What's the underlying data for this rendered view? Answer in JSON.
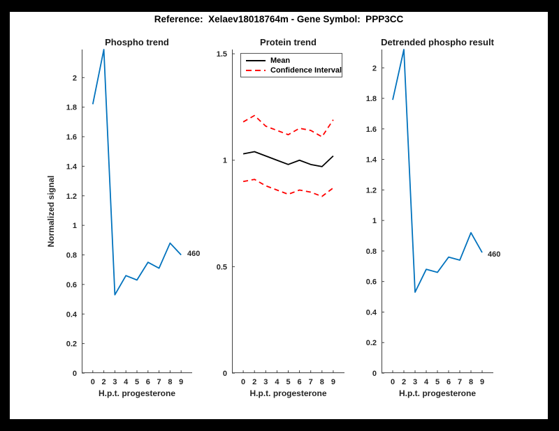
{
  "window": {
    "background": "#000000",
    "canvas_background": "#ffffff"
  },
  "header": {
    "title": "Reference:  Xelaev18018764m - Gene Symbol:  PPP3CC"
  },
  "colors": {
    "series_blue": "#0072BD",
    "series_black": "#000000",
    "series_red": "#FF0000",
    "axis": "#404040",
    "tick_text": "#262626",
    "title_text": "#1a1a1a"
  },
  "chart_data": [
    {
      "type": "line",
      "title": "Phospho trend",
      "xlabel": "H.p.t. progesterone",
      "ylabel": "Normalized signal",
      "x_ticklabels": [
        "0",
        "2",
        "3",
        "4",
        "5",
        "6",
        "7",
        "8",
        "9"
      ],
      "x_positions": [
        1,
        2,
        3,
        4,
        5,
        6,
        7,
        8,
        9
      ],
      "xlim": [
        0,
        10
      ],
      "ylim": [
        0,
        2.19
      ],
      "ytick_values": [
        0,
        0.2,
        0.4,
        0.6,
        0.8,
        1,
        1.2,
        1.4,
        1.6,
        1.8,
        2
      ],
      "ytick_labels": [
        "0",
        "0.2",
        "0.4",
        "0.6",
        "0.8",
        "1",
        "1.2",
        "1.4",
        "1.6",
        "1.8",
        "2"
      ],
      "grid": false,
      "legend_position": null,
      "series": [
        {
          "name": "phospho-signal",
          "color": "#0072BD",
          "dash": "solid",
          "width": 1.8,
          "values": [
            1.82,
            2.19,
            0.53,
            0.66,
            0.63,
            0.75,
            0.71,
            0.88,
            0.8
          ]
        }
      ],
      "annotation": {
        "text": "460",
        "at_point_index": 8
      }
    },
    {
      "type": "line",
      "title": "Protein trend",
      "xlabel": "H.p.t. progesterone",
      "ylabel": "",
      "x_ticklabels": [
        "0",
        "2",
        "3",
        "4",
        "5",
        "6",
        "7",
        "8",
        "9"
      ],
      "x_positions": [
        1,
        2,
        3,
        4,
        5,
        6,
        7,
        8,
        9
      ],
      "xlim": [
        0,
        10
      ],
      "ylim": [
        0,
        1.52
      ],
      "ytick_values": [
        0,
        0.5,
        1,
        1.5
      ],
      "ytick_labels": [
        "0",
        "0.5",
        "1",
        "1.5"
      ],
      "grid": false,
      "legend_position": "top-right",
      "legend": {
        "entries": [
          {
            "label": "Mean",
            "color": "#000000",
            "dash": "solid"
          },
          {
            "label": "Confidence Interval",
            "color": "#FF0000",
            "dash": "dashed"
          }
        ]
      },
      "series": [
        {
          "name": "mean",
          "color": "#000000",
          "dash": "solid",
          "width": 1.8,
          "values": [
            1.03,
            1.04,
            1.02,
            1.0,
            0.98,
            1.0,
            0.98,
            0.97,
            1.02
          ]
        },
        {
          "name": "ci-upper",
          "color": "#FF0000",
          "dash": "dashed",
          "width": 1.8,
          "values": [
            1.18,
            1.21,
            1.16,
            1.14,
            1.12,
            1.15,
            1.14,
            1.11,
            1.19
          ]
        },
        {
          "name": "ci-lower",
          "color": "#FF0000",
          "dash": "dashed",
          "width": 1.8,
          "values": [
            0.9,
            0.91,
            0.88,
            0.86,
            0.84,
            0.86,
            0.85,
            0.83,
            0.87
          ]
        }
      ],
      "annotation": null
    },
    {
      "type": "line",
      "title": "Detrended phospho result",
      "xlabel": "H.p.t. progesterone",
      "ylabel": "",
      "x_ticklabels": [
        "0",
        "2",
        "3",
        "4",
        "5",
        "6",
        "7",
        "8",
        "9"
      ],
      "x_positions": [
        1,
        2,
        3,
        4,
        5,
        6,
        7,
        8,
        9
      ],
      "xlim": [
        0,
        10
      ],
      "ylim": [
        0,
        2.12
      ],
      "ytick_values": [
        0,
        0.2,
        0.4,
        0.6,
        0.8,
        1,
        1.2,
        1.4,
        1.6,
        1.8,
        2
      ],
      "ytick_labels": [
        "0",
        "0.2",
        "0.4",
        "0.6",
        "0.8",
        "1",
        "1.2",
        "1.4",
        "1.6",
        "1.8",
        "2"
      ],
      "grid": false,
      "legend_position": null,
      "series": [
        {
          "name": "detrended-phospho-signal",
          "color": "#0072BD",
          "dash": "solid",
          "width": 1.8,
          "values": [
            1.79,
            2.12,
            0.53,
            0.68,
            0.66,
            0.76,
            0.74,
            0.92,
            0.79
          ]
        }
      ],
      "annotation": {
        "text": "460",
        "at_point_index": 8
      }
    }
  ]
}
